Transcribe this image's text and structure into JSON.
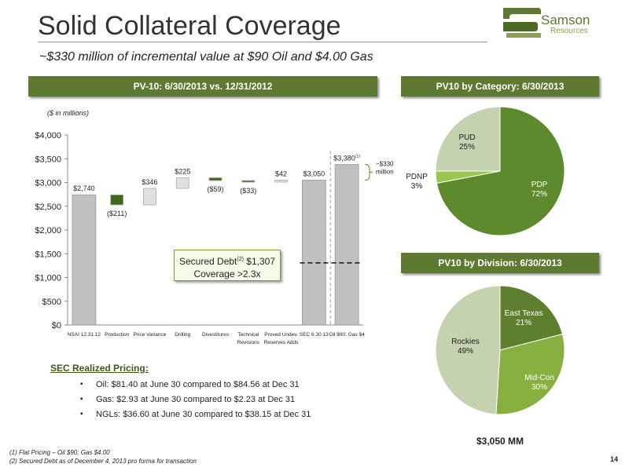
{
  "title": "Solid Collateral Coverage",
  "subtitle": "~$330 million of incremental value at $90 Oil and $4.00 Gas",
  "logo": {
    "name": "Samson",
    "sub": "Resources"
  },
  "banners": {
    "waterfall": "PV-10: 6/30/2013 vs. 12/31/2012",
    "category": "PV10 by Category: 6/30/2013",
    "division": "PV10 by Division: 6/30/2013"
  },
  "units_note": "($ in millions)",
  "secured_box": {
    "line1": "Secured Debt",
    "sup": "(2)",
    "amount": " $1,307",
    "line2": "Coverage >2.3x"
  },
  "bracket_note": {
    "line1": "~$330",
    "line2": "million"
  },
  "pricing": {
    "heading": "SEC Realized Pricing:",
    "items": [
      "Oil:  $81.40 at June 30 compared to $84.56 at Dec 31",
      "Gas:  $2.93 at June 30 compared to $2.23 at Dec 31",
      "NGLs:  $36.60 at June 30 compared to $38.15 at Dec 31"
    ]
  },
  "footnotes": [
    "(1)    Flat Pricing – Oil $90; Gas $4.00",
    "(2)    Secured Debt as of December 4, 2013 pro forma for transaction"
  ],
  "page_number": "14",
  "division_total": "$3,050 MM",
  "colors": {
    "accent": "#5e7a30",
    "bar_gray": "#c0c0c0",
    "neg": "#3e6b1a",
    "pos": "#e0e0e0"
  },
  "chart_data": [
    {
      "type": "bar",
      "subtype": "waterfall",
      "ylim": [
        0,
        4000
      ],
      "yticks": [
        "$0",
        "$500",
        "$1,000",
        "$1,500",
        "$2,000",
        "$2,500",
        "$3,000",
        "$3,500",
        "$4,000"
      ],
      "ytick_values": [
        0,
        500,
        1000,
        1500,
        2000,
        2500,
        3000,
        3500,
        4000
      ],
      "categories": [
        [
          "NSAI 12.31.12"
        ],
        [
          "Production"
        ],
        [
          "Price Variance"
        ],
        [
          "Drilling"
        ],
        [
          "Divestitures"
        ],
        [
          "Technical",
          "Revisions"
        ],
        [
          "Proved Undev.",
          "Reserves Adds"
        ],
        [
          "SEC 6.30.13"
        ],
        [
          "Oil $90; Gas $4"
        ]
      ],
      "bars": [
        {
          "kind": "total",
          "base": 0,
          "value": 2740,
          "label": "$2,740"
        },
        {
          "kind": "neg",
          "base": 2529,
          "value": 211,
          "label": "($211)"
        },
        {
          "kind": "pos",
          "base": 2529,
          "value": 346,
          "label": "$346"
        },
        {
          "kind": "pos",
          "base": 2875,
          "value": 225,
          "label": "$225"
        },
        {
          "kind": "neg",
          "base": 3041,
          "value": 59,
          "label": "($59)"
        },
        {
          "kind": "neg",
          "base": 3008,
          "value": 33,
          "label": "($33)"
        },
        {
          "kind": "pos",
          "base": 3008,
          "value": 42,
          "label": "$42"
        },
        {
          "kind": "total",
          "base": 0,
          "value": 3050,
          "label": "$3,050"
        },
        {
          "kind": "total",
          "base": 0,
          "value": 3380,
          "label": "$3,380",
          "sup": "(1)"
        }
      ],
      "secured_debt_line": 1307
    },
    {
      "type": "pie",
      "title": "PV10 by Category: 6/30/2013",
      "slices": [
        {
          "name": "PDP",
          "value": 72,
          "label": "72%",
          "color": "#5e8a2e"
        },
        {
          "name": "PDNP",
          "value": 3,
          "label": "3%",
          "color": "#9ac54e"
        },
        {
          "name": "PUD",
          "value": 25,
          "label": "25%",
          "color": "#c4d2b0"
        }
      ]
    },
    {
      "type": "pie",
      "title": "PV10 by Division: 6/30/2013",
      "slices": [
        {
          "name": "East Texas",
          "value": 21,
          "label": "21%",
          "color": "#5e7f2e"
        },
        {
          "name": "Mid-Con",
          "value": 30,
          "label": "30%",
          "color": "#88b040"
        },
        {
          "name": "Rockies",
          "value": 49,
          "label": "49%",
          "color": "#c4d2b0"
        }
      ]
    }
  ]
}
